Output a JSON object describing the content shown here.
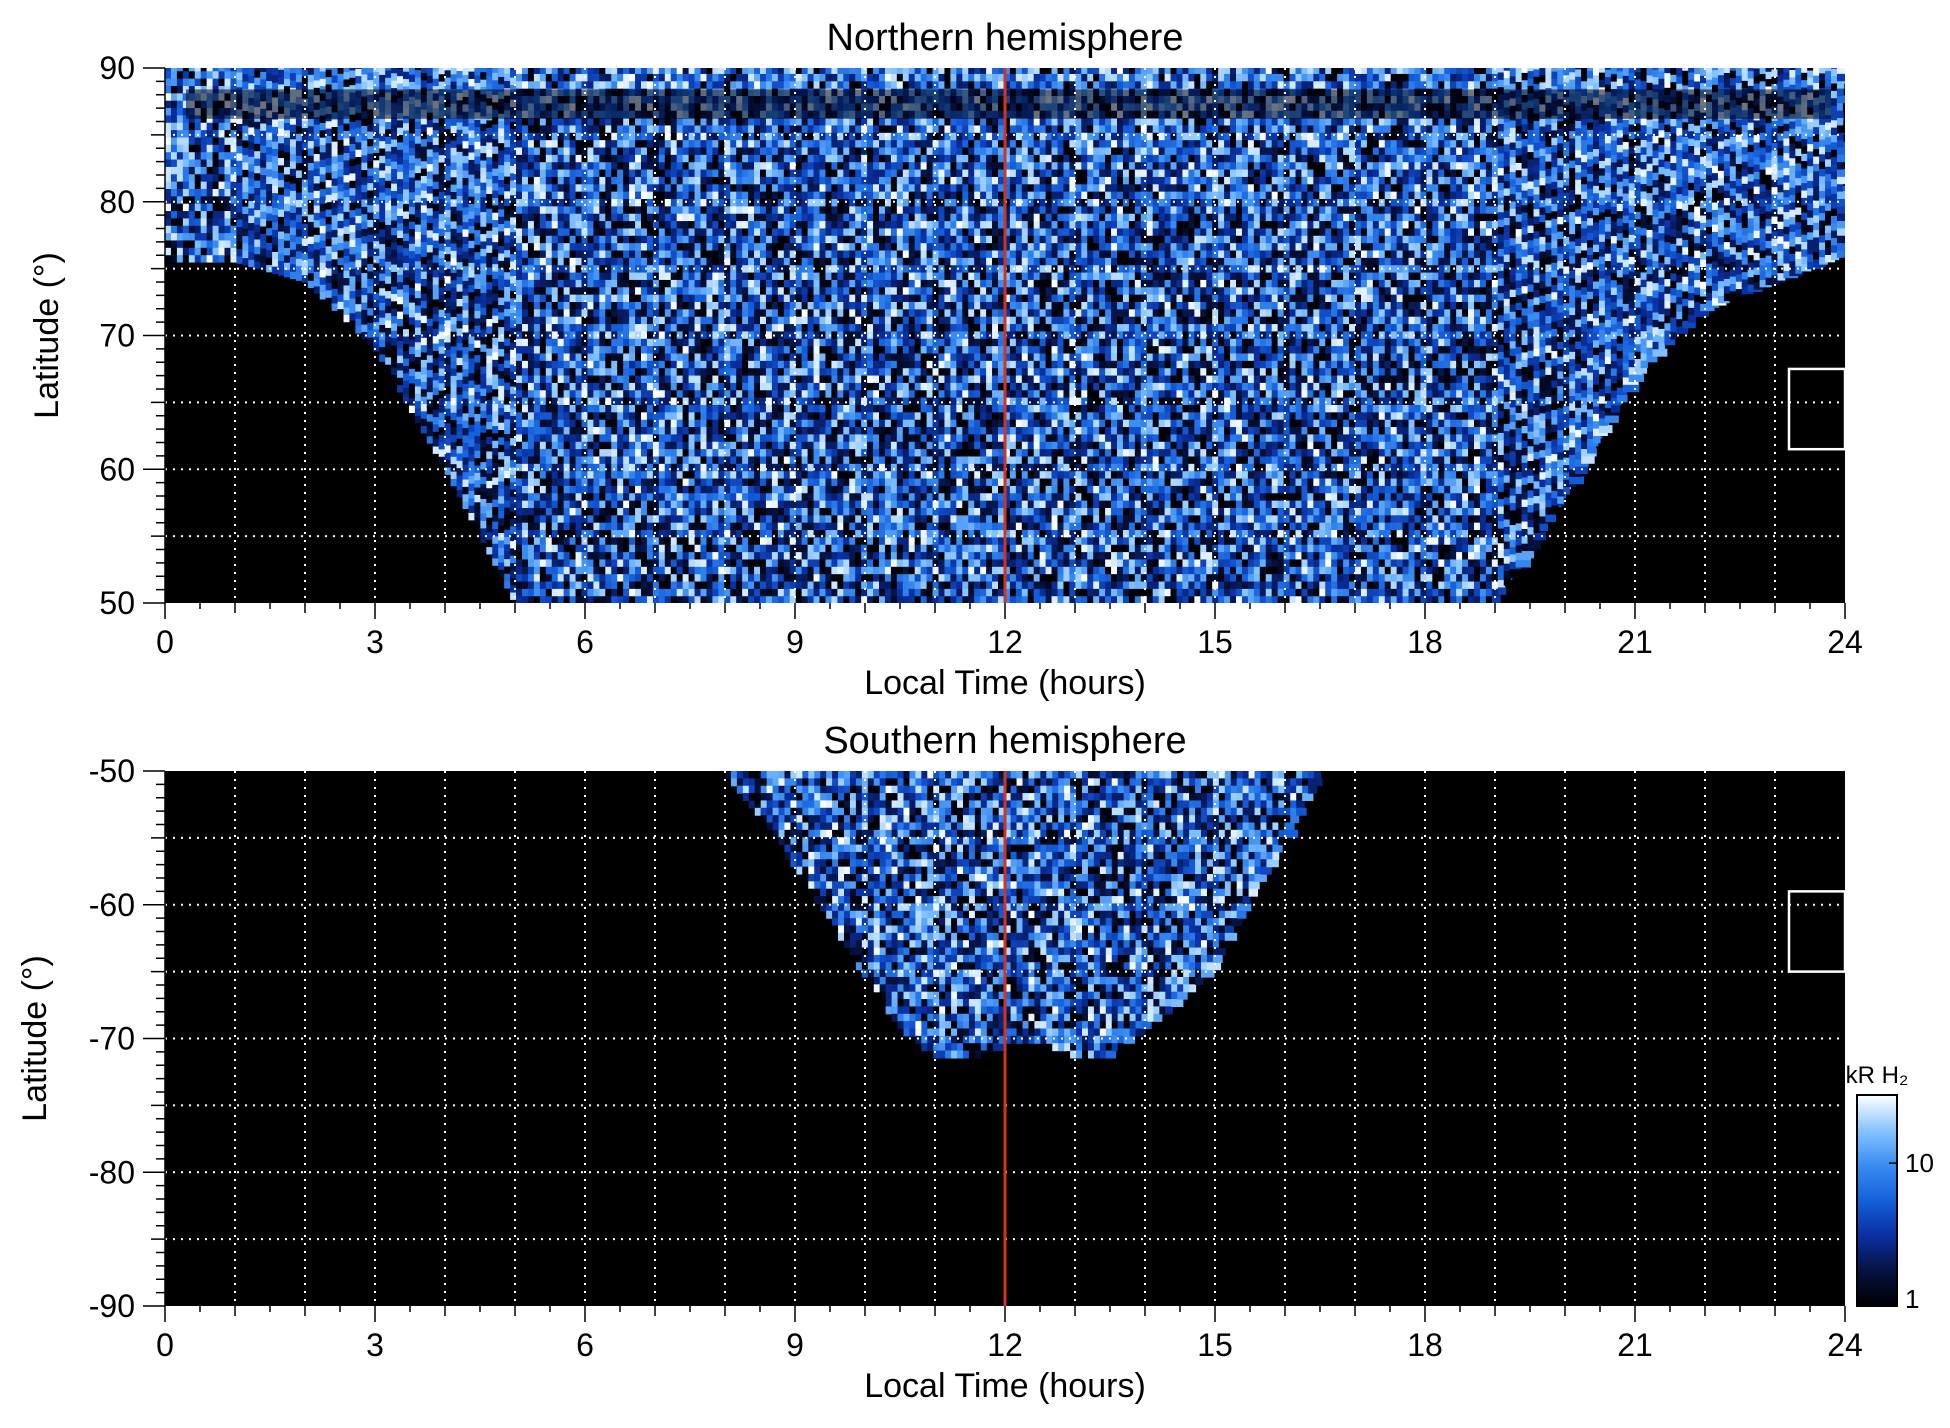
{
  "chart_data": [
    {
      "type": "heatmap",
      "title": "Northern hemisphere",
      "xlabel": "Local Time (hours)",
      "ylabel": "Latitude (°)",
      "xlim": [
        0,
        24
      ],
      "ylim": [
        50,
        90
      ],
      "xticks": [
        0,
        3,
        6,
        9,
        12,
        15,
        18,
        21,
        24
      ],
      "xtick_labels": [
        "0",
        "3",
        "6",
        "9",
        "12",
        "15",
        "18",
        "21",
        "24"
      ],
      "yticks": [
        50,
        60,
        70,
        80,
        90
      ],
      "ytick_labels": [
        "50",
        "60",
        "70",
        "80",
        "90"
      ],
      "grid": true,
      "grid_x_step": 1,
      "grid_y_step": 5,
      "marker_line_x": 12,
      "marker_line_color": "#d2341c",
      "box": {
        "x": [
          23.2,
          24
        ],
        "y": [
          61.5,
          67.5
        ]
      },
      "coverage_boundary": {
        "local_time": [
          0,
          1,
          2,
          3,
          4,
          5,
          6,
          7,
          8,
          9,
          10,
          11,
          12,
          13,
          14,
          15,
          16,
          17,
          18,
          19,
          20,
          21,
          22,
          23,
          24
        ],
        "min_latitude": [
          75.5,
          75.5,
          74,
          69,
          60,
          50,
          50,
          50,
          50,
          50,
          50,
          50,
          50,
          50,
          50,
          50,
          50,
          50,
          50,
          50,
          58,
          67,
          72,
          74,
          76
        ]
      }
    },
    {
      "type": "heatmap",
      "title": "Southern hemisphere",
      "xlabel": "Local Time (hours)",
      "ylabel": "Latitude (°)",
      "xlim": [
        0,
        24
      ],
      "ylim": [
        -90,
        -50
      ],
      "xticks": [
        0,
        3,
        6,
        9,
        12,
        15,
        18,
        21,
        24
      ],
      "xtick_labels": [
        "0",
        "3",
        "6",
        "9",
        "12",
        "15",
        "18",
        "21",
        "24"
      ],
      "yticks": [
        -90,
        -80,
        -70,
        -60,
        -50
      ],
      "ytick_labels": [
        "-90",
        "-80",
        "-70",
        "-60",
        "-50"
      ],
      "grid": true,
      "grid_x_step": 1,
      "grid_y_step": 5,
      "marker_line_x": 12,
      "marker_line_color": "#d2341c",
      "box": {
        "x": [
          23.2,
          24
        ],
        "y": [
          -65,
          -59
        ]
      },
      "coverage_boundary": {
        "local_time": [
          8,
          8.5,
          9,
          9.5,
          10,
          10.5,
          11,
          11.5,
          12,
          12.5,
          13,
          13.5,
          14,
          14.5,
          15,
          15.5,
          16,
          16.5
        ],
        "max_depth_latitude": [
          -50,
          -53,
          -57,
          -61,
          -65,
          -69,
          -71,
          -71.5,
          -70,
          -70,
          -71,
          -71,
          -69,
          -67,
          -64,
          -59,
          -55,
          -50
        ]
      }
    }
  ],
  "colorbar": {
    "unit": "kR H₂",
    "ticks": [
      1,
      10
    ],
    "tick_labels": [
      "1",
      "10"
    ],
    "range": [
      1,
      30
    ],
    "scale": "log",
    "colors": [
      "#000000",
      "#06123f",
      "#0a2fa0",
      "#1560dc",
      "#3a8cf2",
      "#86c4ff",
      "#ffffff"
    ]
  }
}
